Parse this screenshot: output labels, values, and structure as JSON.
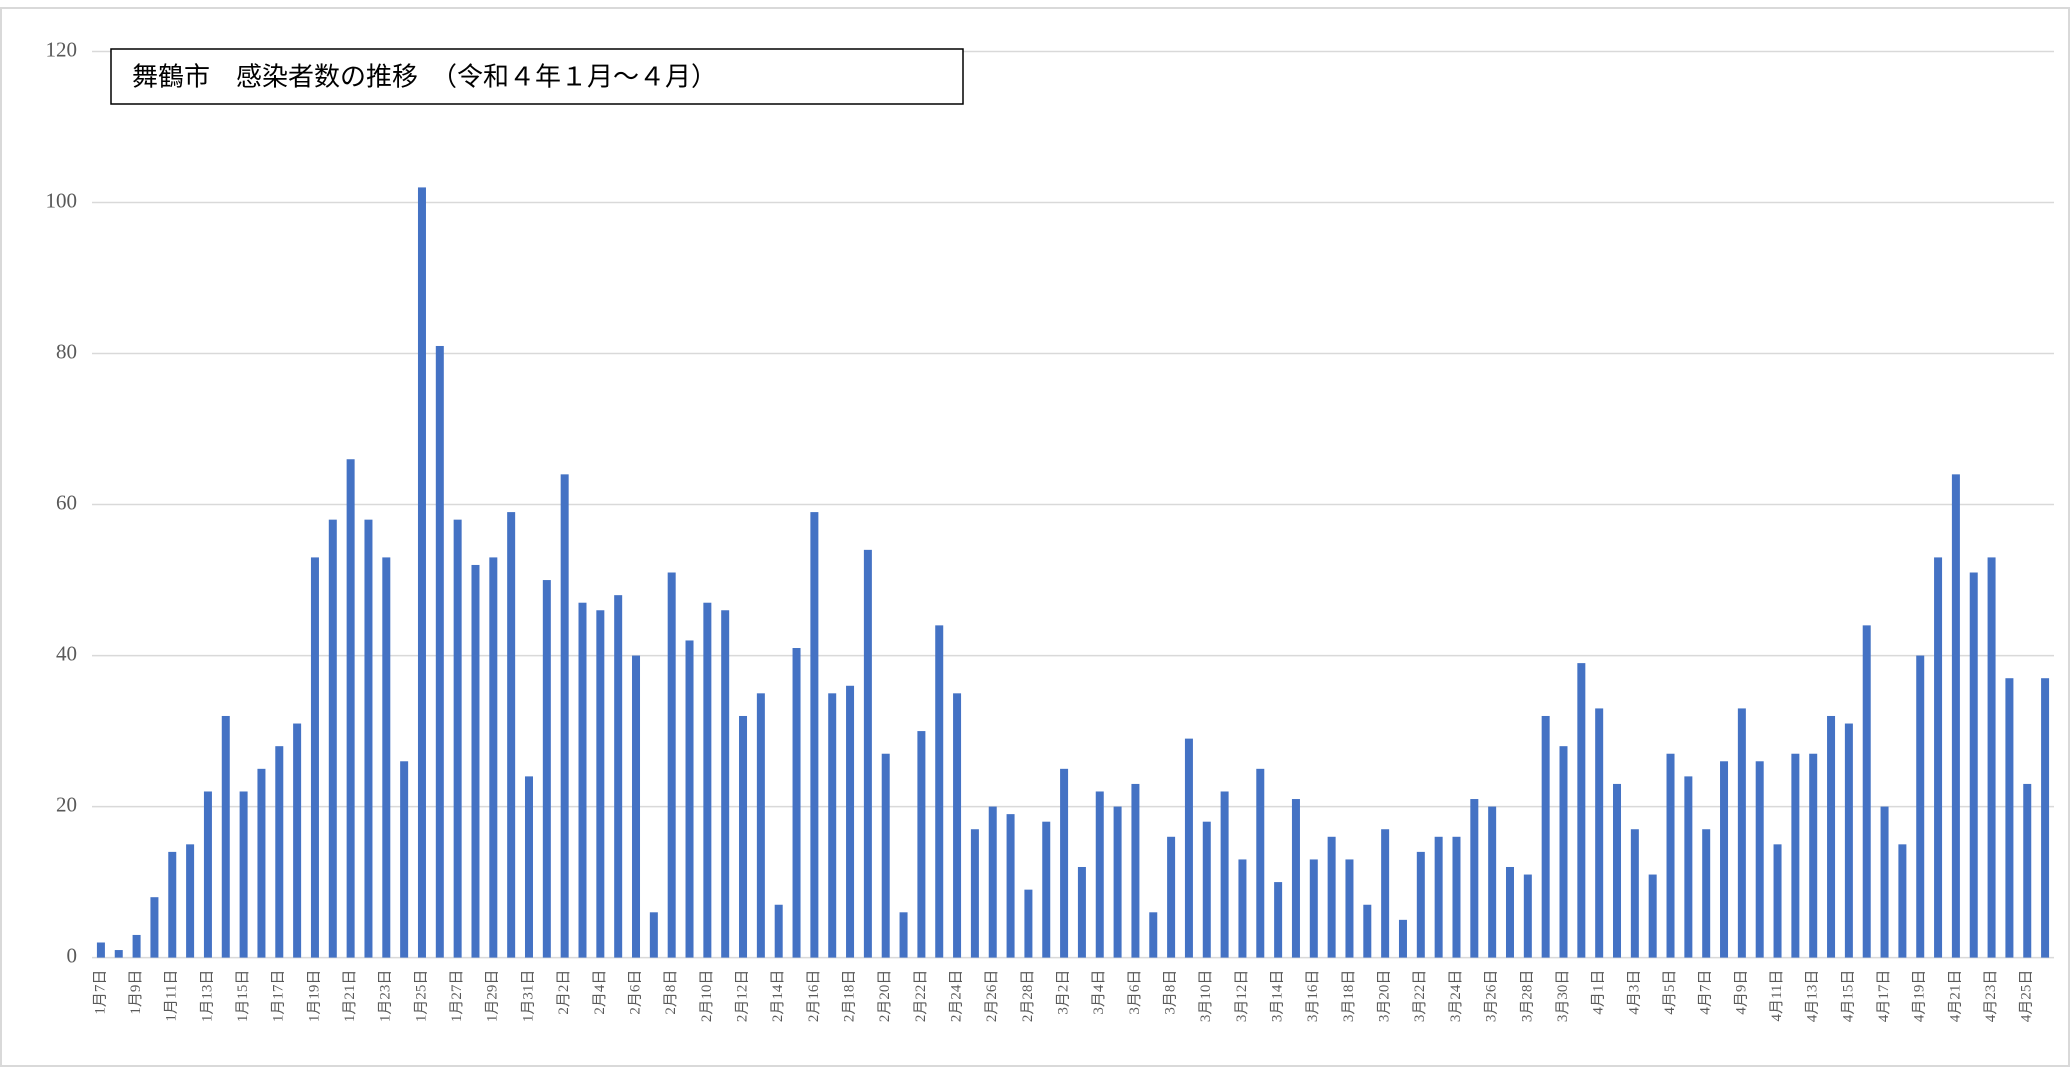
{
  "chart_data": {
    "type": "bar",
    "title": "舞鶴市　感染者数の推移　（令和４年１月～４月）",
    "categories": [
      "1月7日",
      null,
      "1月9日",
      null,
      "1月11日",
      null,
      "1月13日",
      null,
      "1月15日",
      null,
      "1月17日",
      null,
      "1月19日",
      null,
      "1月21日",
      null,
      "1月23日",
      null,
      "1月25日",
      null,
      "1月27日",
      null,
      "1月29日",
      null,
      "1月31日",
      null,
      "2月2日",
      null,
      "2月4日",
      null,
      "2月6日",
      null,
      "2月8日",
      null,
      "2月10日",
      null,
      "2月12日",
      null,
      "2月14日",
      null,
      "2月16日",
      null,
      "2月18日",
      null,
      "2月20日",
      null,
      "2月22日",
      null,
      "2月24日",
      null,
      "2月26日",
      null,
      "2月28日",
      null,
      "3月2日",
      null,
      "3月4日",
      null,
      "3月6日",
      null,
      "3月8日",
      null,
      "3月10日",
      null,
      "3月12日",
      null,
      "3月14日",
      null,
      "3月16日",
      null,
      "3月18日",
      null,
      "3月20日",
      null,
      "3月22日",
      null,
      "3月24日",
      null,
      "3月26日",
      null,
      "3月28日",
      null,
      "3月30日",
      null,
      "4月1日",
      null,
      "4月3日",
      null,
      "4月5日",
      null,
      "4月7日",
      null,
      "4月9日",
      null,
      "4月11日",
      null,
      "4月13日",
      null,
      "4月15日",
      null,
      "4月17日",
      null,
      "4月19日",
      null,
      "4月21日",
      null,
      "4月23日",
      null,
      "4月25日",
      null
    ],
    "values": [
      2,
      1,
      3,
      8,
      14,
      15,
      22,
      32,
      22,
      25,
      28,
      31,
      53,
      58,
      66,
      58,
      53,
      26,
      102,
      81,
      58,
      52,
      53,
      59,
      24,
      50,
      64,
      47,
      46,
      48,
      40,
      6,
      51,
      42,
      47,
      46,
      32,
      35,
      7,
      41,
      59,
      35,
      36,
      54,
      27,
      6,
      30,
      44,
      35,
      17,
      20,
      19,
      9,
      18,
      25,
      12,
      22,
      20,
      23,
      6,
      16,
      29,
      18,
      22,
      13,
      25,
      10,
      21,
      13,
      16,
      13,
      7,
      17,
      5,
      14,
      16,
      16,
      21,
      20,
      12,
      11,
      32,
      28,
      39,
      33,
      23,
      17,
      11,
      27,
      24,
      17,
      26,
      33,
      26,
      15,
      27,
      27,
      32,
      31,
      44,
      20,
      15,
      40,
      53,
      64,
      51,
      53,
      37,
      23,
      37
    ],
    "color": "#4472c4",
    "ylim": [
      0,
      120
    ],
    "yticks": [
      0,
      20,
      40,
      60,
      80,
      100,
      120
    ],
    "grid": true
  }
}
